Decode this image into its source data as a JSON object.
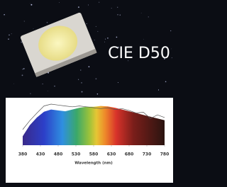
{
  "chart_data": {
    "type": "area",
    "title": "CIE D50",
    "x_label": "Wavelength (nm)",
    "x": [
      380,
      400,
      420,
      440,
      460,
      480,
      500,
      520,
      540,
      560,
      580,
      600,
      620,
      640,
      660,
      680,
      700,
      720,
      740,
      760,
      780
    ],
    "series": [
      {
        "color": "spectrum",
        "values": [
          20,
          45,
          62,
          75,
          80,
          78,
          76,
          80,
          84,
          86,
          86,
          88,
          87,
          84,
          80,
          76,
          72,
          68,
          64,
          60,
          56
        ]
      },
      {
        "color": "#555555",
        "values": [
          35,
          55,
          72,
          88,
          92,
          90,
          88,
          86,
          88,
          86,
          84,
          82,
          84,
          80,
          82,
          78,
          72,
          74,
          60,
          68,
          62
        ]
      }
    ],
    "xlim": [
      380,
      780
    ],
    "xticks": [
      380,
      430,
      480,
      530,
      580,
      630,
      680,
      730,
      780
    ],
    "ylim": [
      0,
      100
    ]
  }
}
